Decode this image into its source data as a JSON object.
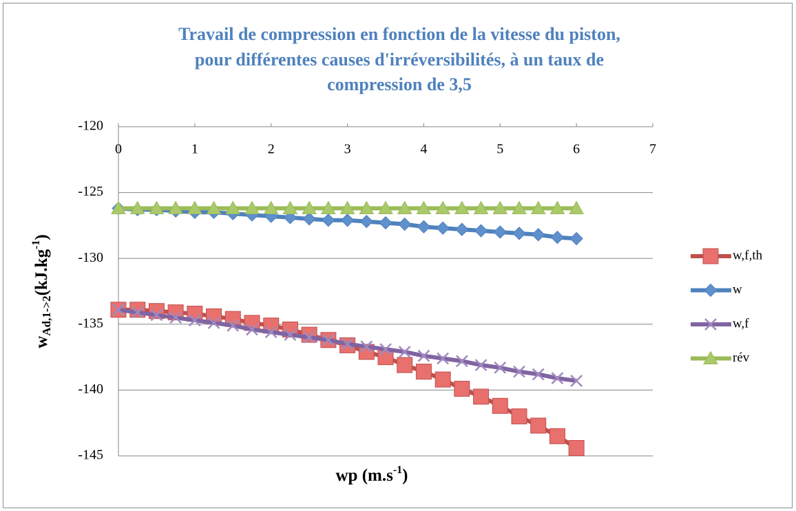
{
  "chart_data": {
    "type": "line",
    "title": [
      "Travail de compression en fonction de la vitesse du piston,",
      "pour différentes causes d'irréversibilités, à un taux de",
      "compression de 3,5"
    ],
    "x_label": {
      "main": "wp (m.s",
      "sup": "-1",
      "end": ")"
    },
    "y_label": {
      "main": "w",
      "sub": "Ad,1->2",
      "rest": "(kJ.kg",
      "sup": "-1",
      "end": ")"
    },
    "x": [
      0,
      0.25,
      0.5,
      0.75,
      1,
      1.25,
      1.5,
      1.75,
      2,
      2.25,
      2.5,
      2.75,
      3,
      3.25,
      3.5,
      3.75,
      4,
      4.25,
      4.5,
      4.75,
      5,
      5.25,
      5.5,
      5.75,
      6
    ],
    "series": [
      {
        "name": "w,f,th",
        "color": "#c0504d",
        "marker": "square",
        "values": [
          -133.9,
          -133.9,
          -134.0,
          -134.1,
          -134.2,
          -134.4,
          -134.6,
          -134.9,
          -135.1,
          -135.4,
          -135.8,
          -136.2,
          -136.6,
          -137.1,
          -137.5,
          -138.1,
          -138.6,
          -139.2,
          -139.9,
          -140.5,
          -141.2,
          -142.0,
          -142.7,
          -143.5,
          -144.4
        ]
      },
      {
        "name": "w",
        "color": "#4f81bd",
        "marker": "diamond",
        "values": [
          -126.2,
          -126.3,
          -126.3,
          -126.4,
          -126.5,
          -126.5,
          -126.6,
          -126.7,
          -126.8,
          -126.9,
          -127.0,
          -127.1,
          -127.1,
          -127.2,
          -127.3,
          -127.4,
          -127.6,
          -127.7,
          -127.8,
          -127.9,
          -128.0,
          -128.1,
          -128.2,
          -128.4,
          -128.5
        ]
      },
      {
        "name": "w,f",
        "color": "#8064a2",
        "marker": "cross",
        "values": [
          -133.9,
          -134.1,
          -134.3,
          -134.5,
          -134.7,
          -134.9,
          -135.1,
          -135.4,
          -135.6,
          -135.8,
          -136.0,
          -136.2,
          -136.5,
          -136.7,
          -136.9,
          -137.1,
          -137.4,
          -137.6,
          -137.8,
          -138.1,
          -138.3,
          -138.6,
          -138.8,
          -139.1,
          -139.3
        ]
      },
      {
        "name": "rév",
        "color": "#9bbb59",
        "marker": "triangle",
        "values": [
          -126.2,
          -126.2,
          -126.2,
          -126.2,
          -126.2,
          -126.2,
          -126.2,
          -126.2,
          -126.2,
          -126.2,
          -126.2,
          -126.2,
          -126.2,
          -126.2,
          -126.2,
          -126.2,
          -126.2,
          -126.2,
          -126.2,
          -126.2,
          -126.2,
          -126.2,
          -126.2,
          -126.2,
          -126.2
        ]
      }
    ],
    "xlim": [
      0,
      7
    ],
    "xticks": [
      0,
      1,
      2,
      3,
      4,
      5,
      6,
      7
    ],
    "ylim": [
      -145,
      -120
    ],
    "yticks": [
      -120,
      -125,
      -130,
      -135,
      -140,
      -145
    ],
    "grid": true,
    "legend": "right"
  }
}
